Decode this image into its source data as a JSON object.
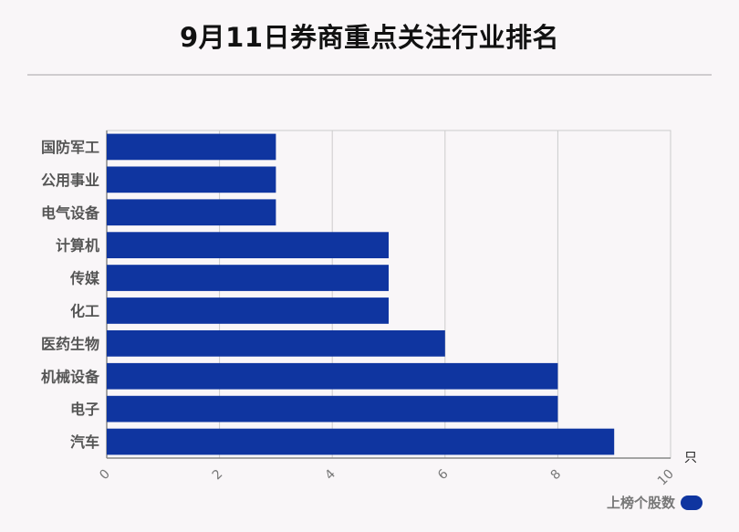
{
  "chart_data": {
    "type": "bar",
    "orientation": "horizontal",
    "title": "9月11日券商重点关注行业排名",
    "categories": [
      "国防军工",
      "公用事业",
      "电气设备",
      "计算机",
      "传媒",
      "化工",
      "医药生物",
      "机械设备",
      "电子",
      "汽车"
    ],
    "series": [
      {
        "name": "上榜个股数",
        "values": [
          3,
          3,
          3,
          5,
          5,
          5,
          6,
          8,
          8,
          9
        ]
      }
    ],
    "xlim": [
      0,
      10
    ],
    "x_ticks": [
      "0",
      "2",
      "4",
      "6",
      "8",
      "10"
    ],
    "x_unit": "只",
    "grid": true,
    "legend_position": "bottom-right"
  },
  "colors": {
    "bar": "#0f35a0",
    "grid": "#cccccc",
    "axis": "#888888"
  }
}
